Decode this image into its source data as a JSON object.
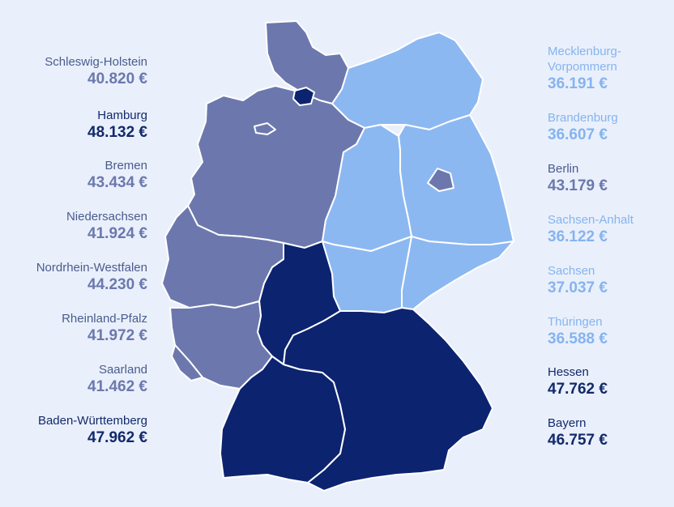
{
  "colors": {
    "background": "#e9f0fb",
    "slate": "#6c78ad",
    "dark": "#0c2370",
    "light": "#8cb8f2",
    "border": "#ffffff"
  },
  "left": [
    {
      "name": "Schleswig-Holstein",
      "value": "40.820 €",
      "tone": "slate"
    },
    {
      "name": "Hamburg",
      "value": "48.132 €",
      "tone": "dark"
    },
    {
      "name": "Bremen",
      "value": "43.434 €",
      "tone": "slate"
    },
    {
      "name": "Niedersachsen",
      "value": "41.924 €",
      "tone": "slate"
    },
    {
      "name": "Nordrhein-Westfalen",
      "value": "44.230 €",
      "tone": "slate"
    },
    {
      "name": "Rheinland-Pfalz",
      "value": "41.972 €",
      "tone": "slate"
    },
    {
      "name": "Saarland",
      "value": "41.462 €",
      "tone": "slate"
    },
    {
      "name": "Baden-Württemberg",
      "value": "47.962 €",
      "tone": "dark"
    }
  ],
  "right": [
    {
      "name": "Mecklenburg-",
      "name2": "Vorpommern",
      "value": "36.191 €",
      "tone": "light"
    },
    {
      "name": "Brandenburg",
      "value": "36.607 €",
      "tone": "light"
    },
    {
      "name": "Berlin",
      "value": "43.179 €",
      "tone": "slate"
    },
    {
      "name": "Sachsen-Anhalt",
      "value": "36.122 €",
      "tone": "light"
    },
    {
      "name": "Sachsen",
      "value": "37.037 €",
      "tone": "light"
    },
    {
      "name": "Thüringen",
      "value": "36.588 €",
      "tone": "light"
    },
    {
      "name": "Hessen",
      "value": "47.762 €",
      "tone": "dark"
    },
    {
      "name": "Bayern",
      "value": "46.757 €",
      "tone": "dark"
    }
  ]
}
